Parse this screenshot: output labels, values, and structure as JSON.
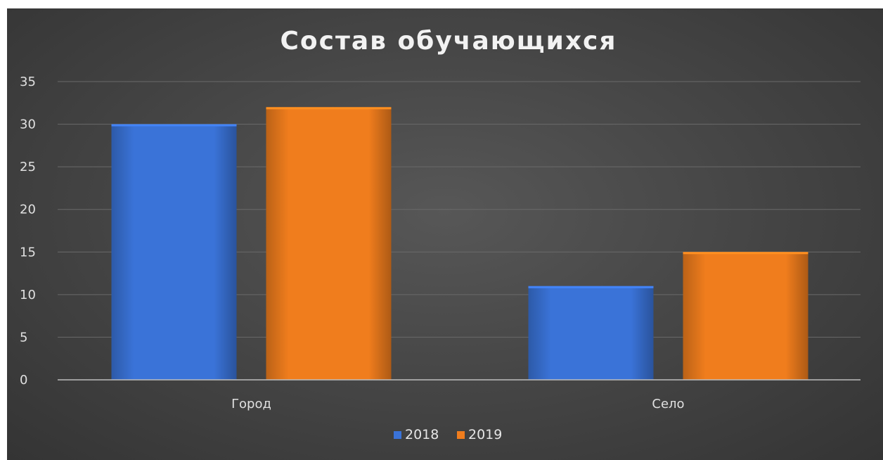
{
  "chart_data": {
    "type": "bar",
    "title": "Состав обучающихся",
    "categories": [
      "Город",
      "Село"
    ],
    "series": [
      {
        "name": "2018",
        "values": [
          30,
          11
        ],
        "color": "#3a73d8"
      },
      {
        "name": "2019",
        "values": [
          32,
          15
        ],
        "color": "#f07d1d"
      }
    ],
    "xlabel": "",
    "ylabel": "",
    "ylim": [
      0,
      35
    ],
    "yticks": [
      0,
      5,
      10,
      15,
      20,
      25,
      30,
      35
    ],
    "grid": true,
    "legend_position": "bottom",
    "background": "#454545",
    "text_color": "#e0e0e0"
  }
}
